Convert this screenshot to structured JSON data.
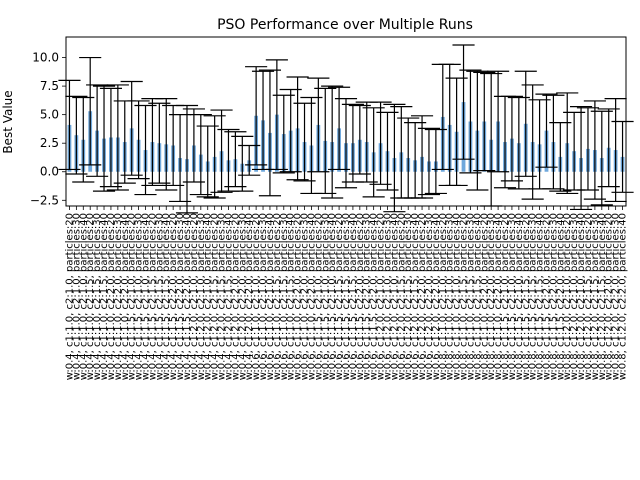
{
  "chart_data": {
    "type": "bar",
    "title": "PSO Performance over Multiple Runs",
    "xlabel": "",
    "ylabel": "Best Value",
    "ylim": [
      -3.0,
      11.8
    ],
    "yticks": [
      -2.5,
      0.0,
      2.5,
      5.0,
      7.5,
      10.0
    ],
    "ytick_labels": [
      "−2.5",
      "0.0",
      "2.5",
      "5.0",
      "7.5",
      "10.0"
    ],
    "grid": false,
    "legend": "none",
    "bar_color": "#6fa8dc",
    "error_color": "#000000",
    "categories": [
      "w:0.4, c1:1.0, c2:1.0, particles:20",
      "w:0.4, c1:1.0, c2:1.0, particles:30",
      "w:0.4, c1:1.0, c2:1.0, particles:40",
      "w:0.4, c1:1.0, c2:1.5, particles:20",
      "w:0.4, c1:1.0, c2:1.5, particles:30",
      "w:0.4, c1:1.0, c2:1.5, particles:40",
      "w:0.4, c1:1.0, c2:2.0, particles:20",
      "w:0.4, c1:1.0, c2:2.0, particles:30",
      "w:0.4, c1:1.0, c2:2.0, particles:40",
      "w:0.4, c1:1.5, c2:1.0, particles:20",
      "w:0.4, c1:1.5, c2:1.0, particles:30",
      "w:0.4, c1:1.5, c2:1.0, particles:40",
      "w:0.4, c1:1.5, c2:1.5, particles:20",
      "w:0.4, c1:1.5, c2:1.5, particles:30",
      "w:0.4, c1:1.5, c2:1.5, particles:40",
      "w:0.4, c1:1.5, c2:2.0, particles:20",
      "w:0.4, c1:1.5, c2:2.0, particles:30",
      "w:0.4, c1:1.5, c2:2.0, particles:40",
      "w:0.4, c1:2.0, c2:1.0, particles:20",
      "w:0.4, c1:2.0, c2:1.0, particles:30",
      "w:0.4, c1:2.0, c2:1.0, particles:40",
      "w:0.4, c1:2.0, c2:1.5, particles:20",
      "w:0.4, c1:2.0, c2:1.5, particles:30",
      "w:0.4, c1:2.0, c2:1.5, particles:40",
      "w:0.4, c1:2.0, c2:2.0, particles:20",
      "w:0.4, c1:2.0, c2:2.0, particles:30",
      "w:0.4, c1:2.0, c2:2.0, particles:40",
      "w:0.6, c1:1.0, c2:1.0, particles:20",
      "w:0.6, c1:1.0, c2:1.0, particles:30",
      "w:0.6, c1:1.0, c2:1.0, particles:40",
      "w:0.6, c1:1.0, c2:1.5, particles:20",
      "w:0.6, c1:1.0, c2:1.5, particles:30",
      "w:0.6, c1:1.0, c2:1.5, particles:40",
      "w:0.6, c1:1.0, c2:2.0, particles:20",
      "w:0.6, c1:1.0, c2:2.0, particles:30",
      "w:0.6, c1:1.0, c2:2.0, particles:40",
      "w:0.6, c1:1.5, c2:1.0, particles:20",
      "w:0.6, c1:1.5, c2:1.0, particles:30",
      "w:0.6, c1:1.5, c2:1.0, particles:40",
      "w:0.6, c1:1.5, c2:1.5, particles:20",
      "w:0.6, c1:1.5, c2:1.5, particles:30",
      "w:0.6, c1:1.5, c2:1.5, particles:40",
      "w:0.6, c1:1.5, c2:2.0, particles:20",
      "w:0.6, c1:1.5, c2:2.0, particles:30",
      "w:0.6, c1:1.5, c2:2.0, particles:40",
      "w:0.6, c1:2.0, c2:1.0, particles:20",
      "w:0.6, c1:2.0, c2:1.0, particles:30",
      "w:0.6, c1:2.0, c2:1.0, particles:40",
      "w:0.6, c1:2.0, c2:1.5, particles:20",
      "w:0.6, c1:2.0, c2:1.5, particles:30",
      "w:0.6, c1:2.0, c2:1.5, particles:40",
      "w:0.6, c1:2.0, c2:2.0, particles:20",
      "w:0.6, c1:2.0, c2:2.0, particles:30",
      "w:0.6, c1:2.0, c2:2.0, particles:40",
      "w:0.8, c1:1.0, c2:1.0, particles:20",
      "w:0.8, c1:1.0, c2:1.0, particles:30",
      "w:0.8, c1:1.0, c2:1.0, particles:40",
      "w:0.8, c1:1.0, c2:1.5, particles:20",
      "w:0.8, c1:1.0, c2:1.5, particles:30",
      "w:0.8, c1:1.0, c2:1.5, particles:40",
      "w:0.8, c1:1.0, c2:2.0, particles:20",
      "w:0.8, c1:1.0, c2:2.0, particles:30",
      "w:0.8, c1:1.0, c2:2.0, particles:40",
      "w:0.8, c1:1.5, c2:1.0, particles:20",
      "w:0.8, c1:1.5, c2:1.0, particles:30",
      "w:0.8, c1:1.5, c2:1.0, particles:40",
      "w:0.8, c1:1.5, c2:1.5, particles:20",
      "w:0.8, c1:1.5, c2:1.5, particles:30",
      "w:0.8, c1:1.5, c2:1.5, particles:40",
      "w:0.8, c1:1.5, c2:2.0, particles:20",
      "w:0.8, c1:1.5, c2:2.0, particles:30",
      "w:0.8, c1:1.5, c2:2.0, particles:40",
      "w:0.8, c1:2.0, c2:1.0, particles:20",
      "w:0.8, c1:2.0, c2:1.0, particles:30",
      "w:0.8, c1:2.0, c2:1.0, particles:40",
      "w:0.8, c1:2.0, c2:1.5, particles:20",
      "w:0.8, c1:2.0, c2:1.5, particles:30",
      "w:0.8, c1:2.0, c2:1.5, particles:40",
      "w:0.8, c1:2.0, c2:2.0, particles:20",
      "w:0.8, c1:2.0, c2:2.0, particles:30",
      "w:0.8, c1:2.0, c2:2.0, particles:40"
    ],
    "values": [
      4.1,
      3.2,
      2.8,
      5.3,
      3.6,
      2.9,
      3.0,
      3.0,
      2.6,
      3.8,
      2.8,
      1.9,
      2.6,
      2.5,
      2.4,
      2.3,
      1.2,
      1.1,
      2.3,
      1.5,
      0.9,
      1.3,
      1.8,
      1.0,
      1.1,
      0.7,
      1.0,
      4.9,
      4.5,
      3.4,
      5.0,
      3.3,
      3.6,
      3.8,
      2.6,
      2.3,
      4.1,
      2.7,
      2.6,
      3.8,
      2.5,
      2.5,
      2.8,
      2.6,
      1.7,
      2.5,
      1.8,
      1.2,
      1.7,
      1.2,
      1.0,
      1.3,
      0.9,
      0.9,
      4.8,
      4.1,
      3.5,
      6.1,
      4.4,
      3.6,
      4.4,
      2.8,
      4.4,
      2.6,
      2.9,
      2.5,
      4.2,
      2.6,
      2.4,
      3.6,
      2.6,
      1.3,
      2.5,
      1.8,
      1.2,
      2.0,
      1.9,
      1.2,
      2.1,
      1.9,
      1.3
    ],
    "errors": [
      3.9,
      3.4,
      3.7,
      4.7,
      4.0,
      4.6,
      4.3,
      4.6,
      3.6,
      4.1,
      3.4,
      3.9,
      3.8,
      3.5,
      4.0,
      3.5,
      3.8,
      4.7,
      3.2,
      3.5,
      3.1,
      3.6,
      3.6,
      2.7,
      2.4,
      2.4,
      1.3,
      4.3,
      4.3,
      5.5,
      4.8,
      3.4,
      3.6,
      4.5,
      3.4,
      4.2,
      4.1,
      4.6,
      4.9,
      3.6,
      3.9,
      3.4,
      3.0,
      3.5,
      3.9,
      3.6,
      3.4,
      4.7,
      4.0,
      3.5,
      3.3,
      3.6,
      2.9,
      2.8,
      4.6,
      5.3,
      4.7,
      5.0,
      4.5,
      5.2,
      4.3,
      5.8,
      4.4,
      4.0,
      3.7,
      4.0,
      4.6,
      5.0,
      3.9,
      3.2,
      4.1,
      3.0,
      4.4,
      3.4,
      4.5,
      3.6,
      4.3,
      4.1,
      3.4,
      4.5,
      3.1
    ]
  }
}
